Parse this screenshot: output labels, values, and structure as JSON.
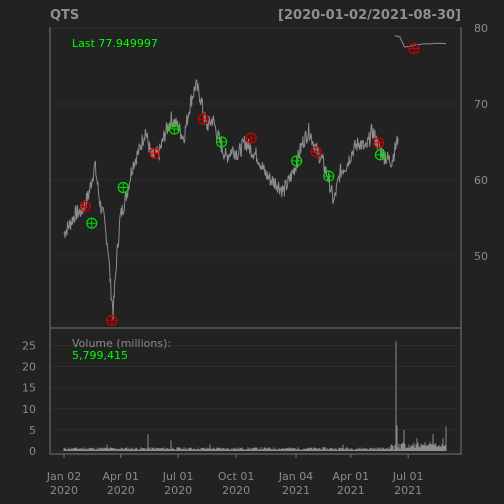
{
  "header": {
    "symbol": "QTS",
    "date_range": "[2020-01-02/2021-08-30]"
  },
  "price_panel": {
    "last_label": "Last 77.949997",
    "last_value": 77.949997,
    "y_ticks": [
      "50",
      "60",
      "70",
      "80"
    ]
  },
  "volume_panel": {
    "label": "Volume (millions):",
    "value": "5,799,415",
    "y_ticks": [
      "0",
      "5",
      "10",
      "15",
      "20",
      "25"
    ]
  },
  "x_axis": {
    "ticks": [
      {
        "month": "Jan 02",
        "year": "2020"
      },
      {
        "month": "Apr 01",
        "year": "2020"
      },
      {
        "month": "Jul 01",
        "year": "2020"
      },
      {
        "month": "Oct 01",
        "year": "2020"
      },
      {
        "month": "Jan 04",
        "year": "2021"
      },
      {
        "month": "Apr 01",
        "year": "2021"
      },
      {
        "month": "Jul 01",
        "year": "2021"
      }
    ]
  },
  "colors": {
    "background": "#222222",
    "price_line": "#8c8c8c",
    "buy_marker": "#00dd00",
    "sell_marker": "#cc0000",
    "last_text": "#00ff00",
    "frame": "#777777",
    "grid": "#2d2d2d"
  },
  "chart_data": {
    "type": "line",
    "title": "QTS",
    "date_range": "[2020-01-02/2021-08-30]",
    "price": {
      "ylim": [
        40.5,
        80
      ],
      "points": [
        [
          "2020-01-02",
          53
        ],
        [
          "2020-01-10",
          54
        ],
        [
          "2020-01-20",
          55.5
        ],
        [
          "2020-01-31",
          56
        ],
        [
          "2020-02-10",
          58
        ],
        [
          "2020-02-20",
          62
        ],
        [
          "2020-02-28",
          57
        ],
        [
          "2020-03-05",
          55
        ],
        [
          "2020-03-12",
          51
        ],
        [
          "2020-03-16",
          46
        ],
        [
          "2020-03-20",
          42.5
        ],
        [
          "2020-03-25",
          49
        ],
        [
          "2020-03-31",
          55
        ],
        [
          "2020-04-10",
          58
        ],
        [
          "2020-04-20",
          62
        ],
        [
          "2020-05-01",
          64
        ],
        [
          "2020-05-10",
          66.5
        ],
        [
          "2020-05-20",
          63
        ],
        [
          "2020-06-01",
          63.5
        ],
        [
          "2020-06-10",
          66
        ],
        [
          "2020-06-20",
          68
        ],
        [
          "2020-07-01",
          67
        ],
        [
          "2020-07-10",
          65.5
        ],
        [
          "2020-07-20",
          70
        ],
        [
          "2020-07-29",
          72.5
        ],
        [
          "2020-08-05",
          71
        ],
        [
          "2020-08-15",
          67
        ],
        [
          "2020-08-25",
          68
        ],
        [
          "2020-09-05",
          65
        ],
        [
          "2020-09-15",
          63
        ],
        [
          "2020-09-25",
          64
        ],
        [
          "2020-10-05",
          63.5
        ],
        [
          "2020-10-15",
          65
        ],
        [
          "2020-10-25",
          64
        ],
        [
          "2020-11-05",
          63
        ],
        [
          "2020-11-15",
          61
        ],
        [
          "2020-11-25",
          60
        ],
        [
          "2020-12-05",
          59.5
        ],
        [
          "2020-12-15",
          58.5
        ],
        [
          "2020-12-25",
          60
        ],
        [
          "2021-01-04",
          62
        ],
        [
          "2021-01-15",
          65
        ],
        [
          "2021-01-25",
          66.5
        ],
        [
          "2021-02-05",
          64
        ],
        [
          "2021-02-15",
          62.5
        ],
        [
          "2021-02-25",
          60
        ],
        [
          "2021-03-05",
          57
        ],
        [
          "2021-03-15",
          61
        ],
        [
          "2021-03-25",
          62
        ],
        [
          "2021-04-05",
          64
        ],
        [
          "2021-04-15",
          65
        ],
        [
          "2021-04-25",
          64
        ],
        [
          "2021-05-05",
          66.5
        ],
        [
          "2021-05-15",
          64.5
        ],
        [
          "2021-05-25",
          63
        ],
        [
          "2021-06-05",
          62.5
        ],
        [
          "2021-06-10",
          64
        ],
        [
          "2021-06-15",
          65.5
        ]
      ],
      "inset_points": [
        [
          "2021-06-10",
          79
        ],
        [
          "2021-06-18",
          78.8
        ],
        [
          "2021-06-25",
          77.5
        ],
        [
          "2021-07-05",
          77.6
        ],
        [
          "2021-07-15",
          77.8
        ],
        [
          "2021-07-25",
          77.9
        ],
        [
          "2021-08-05",
          77.9
        ],
        [
          "2021-08-15",
          78.0
        ],
        [
          "2021-08-30",
          77.95
        ]
      ]
    },
    "signals": [
      {
        "date": "2020-02-05",
        "price": 56.5,
        "type": "sell"
      },
      {
        "date": "2020-02-15",
        "price": 54.3,
        "type": "buy"
      },
      {
        "date": "2020-03-18",
        "price": 41.5,
        "type": "sell"
      },
      {
        "date": "2020-04-05",
        "price": 59,
        "type": "buy"
      },
      {
        "date": "2020-05-25",
        "price": 63.5,
        "type": "sell"
      },
      {
        "date": "2020-06-25",
        "price": 66.7,
        "type": "buy"
      },
      {
        "date": "2020-08-10",
        "price": 68,
        "type": "sell"
      },
      {
        "date": "2020-09-08",
        "price": 65,
        "type": "buy"
      },
      {
        "date": "2020-10-25",
        "price": 65.5,
        "type": "sell"
      },
      {
        "date": "2021-01-05",
        "price": 62.5,
        "type": "buy"
      },
      {
        "date": "2021-02-05",
        "price": 63.7,
        "type": "sell"
      },
      {
        "date": "2021-02-25",
        "price": 60.5,
        "type": "buy"
      },
      {
        "date": "2021-05-15",
        "price": 64.9,
        "type": "sell"
      },
      {
        "date": "2021-05-18",
        "price": 63.3,
        "type": "buy"
      },
      {
        "date": "2021-07-10",
        "price": 77.3,
        "type": "sell"
      }
    ],
    "volume": {
      "ylim": [
        0,
        27
      ],
      "last": 5.799415,
      "base": 0.6,
      "spikes": [
        [
          "2020-03-10",
          1.5
        ],
        [
          "2020-05-15",
          4
        ],
        [
          "2020-06-20",
          2.5
        ],
        [
          "2020-08-20",
          1.5
        ],
        [
          "2021-03-20",
          1.5
        ],
        [
          "2021-06-11",
          26
        ],
        [
          "2021-06-14",
          6
        ],
        [
          "2021-06-25",
          5
        ],
        [
          "2021-07-15",
          3
        ],
        [
          "2021-08-10",
          4
        ],
        [
          "2021-08-25",
          3
        ],
        [
          "2021-08-30",
          5.8
        ]
      ]
    }
  }
}
